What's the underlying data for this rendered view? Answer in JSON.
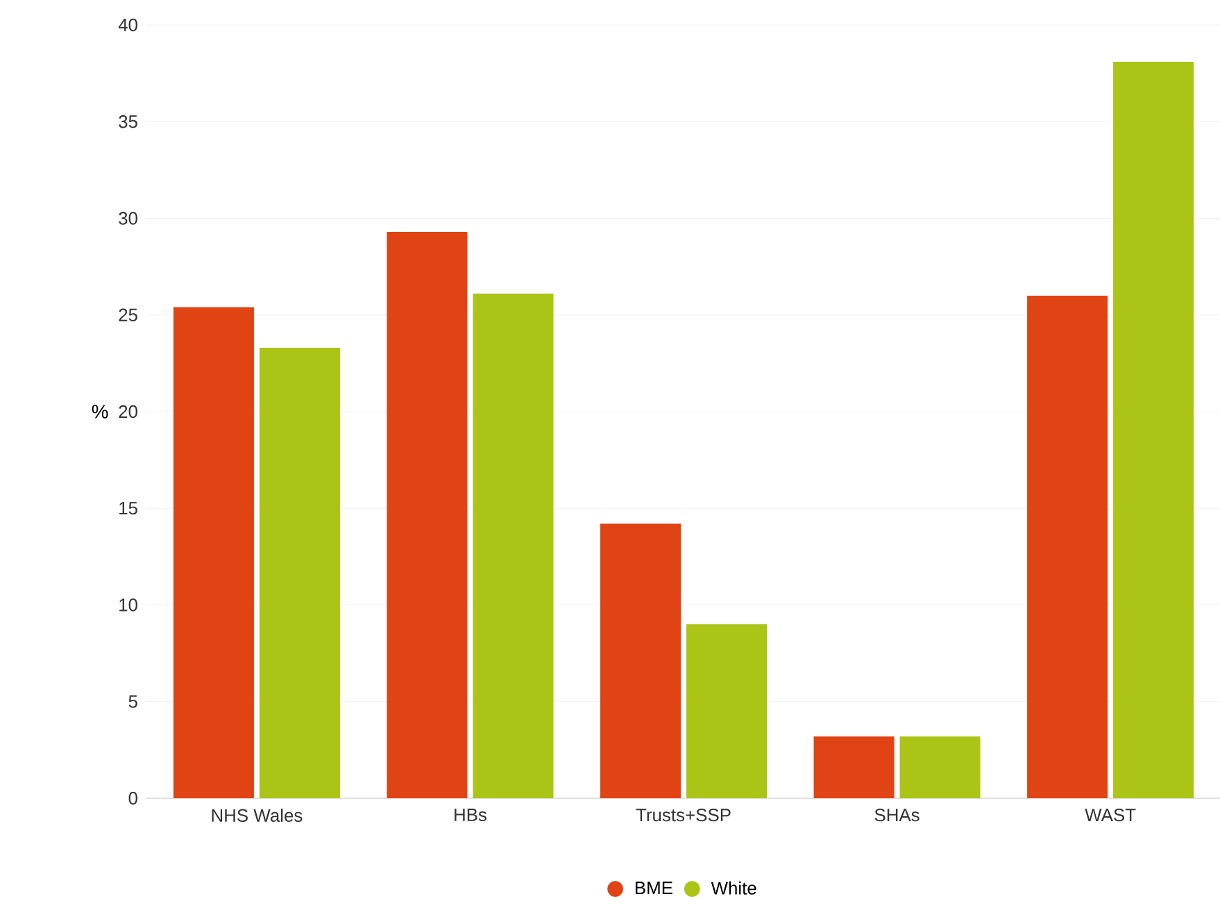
{
  "chart_data": {
    "type": "bar",
    "ylabel": "%",
    "categories": [
      "NHS Wales",
      "HBs",
      "Trusts+SSP",
      "SHAs",
      "WAST"
    ],
    "series": [
      {
        "name": "BME",
        "color": "#e04414",
        "values": [
          25.4,
          29.3,
          14.2,
          3.2,
          26.0
        ]
      },
      {
        "name": "White",
        "color": "#acc415",
        "values": [
          23.3,
          26.1,
          9.0,
          3.2,
          38.1
        ]
      }
    ],
    "ylim": [
      0,
      40
    ],
    "yticks": [
      0,
      5,
      10,
      15,
      20,
      25,
      30,
      35,
      40
    ],
    "grid": "y",
    "legend": "bottom"
  }
}
